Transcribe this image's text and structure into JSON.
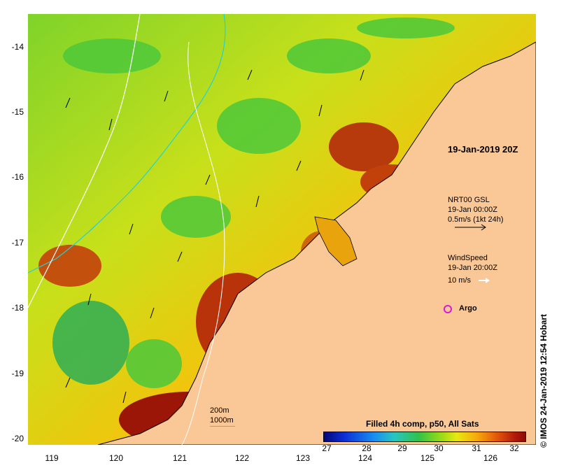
{
  "map": {
    "lat_ticks": [
      "-14",
      "-15",
      "-16",
      "-17",
      "-18",
      "-19",
      "-20"
    ],
    "lon_ticks": [
      "119",
      "120",
      "121",
      "122",
      "123",
      "124",
      "125",
      "126"
    ],
    "colors": {
      "land": "#f9c896",
      "isobath_200m": "#25d0d8",
      "isobath_1000m": "#ffffff",
      "argo": "#d81ad8"
    }
  },
  "labels": {
    "timestamp": "19-Jan-2019 20Z",
    "current_title": "NRT00 GSL",
    "current_date": "19-Jan 00:00Z",
    "current_scale": "0.5m/s (1kt 24h)",
    "wind_title": "WindSpeed",
    "wind_date": "19-Jan 20:00Z",
    "wind_scale": "10 m/s",
    "argo": "Argo",
    "isobath_200": "200m",
    "isobath_1000": "1000m",
    "colorbar_title": "Filled 4h comp, p50, All Sats",
    "credit": "© IMOS 24-Jan-2019 12:54 Hobart"
  },
  "colorbar": {
    "ticks": [
      "27",
      "28",
      "29",
      "30",
      "31",
      "32"
    ]
  }
}
